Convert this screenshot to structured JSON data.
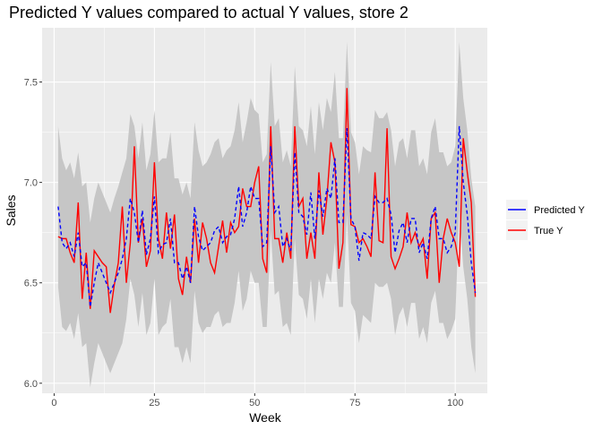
{
  "chart_data": {
    "type": "line",
    "title": "Predicted Y values compared to actual Y values, store 2",
    "xlabel": "Week",
    "ylabel": "Sales",
    "xlim": [
      -3,
      108
    ],
    "ylim": [
      5.95,
      7.77
    ],
    "x_ticks": [
      0,
      25,
      50,
      75,
      100
    ],
    "y_ticks": [
      6.0,
      6.5,
      7.0,
      7.5
    ],
    "x_tick_labels": [
      "0",
      "25",
      "50",
      "75",
      "100"
    ],
    "y_tick_labels": [
      "6.0",
      "6.5",
      "7.0",
      "7.5"
    ],
    "grid": true,
    "legend_position": "right",
    "colors": {
      "panel": "#ebebeb",
      "grid_major": "#ffffff",
      "ribbon": "#c6c6c6",
      "predicted": "#0000ff",
      "true": "#ff0000"
    },
    "x": [
      1,
      2,
      3,
      4,
      5,
      6,
      7,
      8,
      9,
      10,
      11,
      12,
      13,
      14,
      15,
      16,
      17,
      18,
      19,
      20,
      21,
      22,
      23,
      24,
      25,
      26,
      27,
      28,
      29,
      30,
      31,
      32,
      33,
      34,
      35,
      36,
      37,
      38,
      39,
      40,
      41,
      42,
      43,
      44,
      45,
      46,
      47,
      48,
      49,
      50,
      51,
      52,
      53,
      54,
      55,
      56,
      57,
      58,
      59,
      60,
      61,
      62,
      63,
      64,
      65,
      66,
      67,
      68,
      69,
      70,
      71,
      72,
      73,
      74,
      75,
      76,
      77,
      78,
      79,
      80,
      81,
      82,
      83,
      84,
      85,
      86,
      87,
      88,
      89,
      90,
      91,
      92,
      93,
      94,
      95,
      96,
      97,
      98,
      99,
      100,
      101,
      102,
      103,
      104,
      105
    ],
    "series": [
      {
        "name": "Predicted Y",
        "line": "dashed",
        "values": [
          6.88,
          6.7,
          6.67,
          6.7,
          6.63,
          6.75,
          6.58,
          6.6,
          6.38,
          6.5,
          6.6,
          6.55,
          6.5,
          6.45,
          6.5,
          6.55,
          6.62,
          6.72,
          6.92,
          6.85,
          6.7,
          6.86,
          6.64,
          6.72,
          6.93,
          6.65,
          6.69,
          6.7,
          6.82,
          6.6,
          6.6,
          6.52,
          6.58,
          6.5,
          6.88,
          6.73,
          6.66,
          6.68,
          6.7,
          6.76,
          6.78,
          6.7,
          6.73,
          6.74,
          6.82,
          6.98,
          6.78,
          6.85,
          6.98,
          6.92,
          6.92,
          6.68,
          6.7,
          7.18,
          6.85,
          6.88,
          6.68,
          6.72,
          6.66,
          7.15,
          6.85,
          6.83,
          6.74,
          6.95,
          6.72,
          6.96,
          6.83,
          6.97,
          6.92,
          7.12,
          6.8,
          6.8,
          7.27,
          6.82,
          6.78,
          6.61,
          6.75,
          6.74,
          6.72,
          6.93,
          6.9,
          6.9,
          6.92,
          6.84,
          6.65,
          6.76,
          6.8,
          6.7,
          6.82,
          6.82,
          6.65,
          6.7,
          6.62,
          6.82,
          6.88,
          6.72,
          6.72,
          6.65,
          6.68,
          6.75,
          7.28,
          7.0,
          6.84,
          6.6,
          6.45
        ]
      },
      {
        "name": "True Y",
        "line": "solid",
        "values": [
          6.73,
          6.72,
          6.72,
          6.65,
          6.6,
          6.9,
          6.42,
          6.65,
          6.37,
          6.66,
          6.63,
          6.6,
          6.58,
          6.35,
          6.49,
          6.6,
          6.88,
          6.5,
          6.7,
          7.18,
          6.7,
          6.82,
          6.58,
          6.66,
          7.1,
          6.72,
          6.62,
          6.85,
          6.67,
          6.84,
          6.52,
          6.44,
          6.63,
          6.5,
          6.82,
          6.6,
          6.8,
          6.72,
          6.6,
          6.55,
          6.68,
          6.81,
          6.65,
          6.8,
          6.75,
          6.78,
          6.97,
          6.88,
          6.88,
          7.0,
          7.08,
          6.62,
          6.55,
          7.28,
          6.72,
          6.72,
          6.6,
          6.75,
          6.62,
          7.28,
          6.88,
          6.92,
          6.62,
          6.75,
          6.62,
          7.05,
          6.74,
          6.92,
          7.2,
          7.1,
          6.57,
          6.7,
          7.47,
          6.79,
          6.78,
          6.7,
          6.72,
          6.68,
          6.63,
          7.05,
          6.71,
          6.7,
          7.27,
          6.63,
          6.57,
          6.62,
          6.68,
          6.85,
          6.7,
          6.75,
          6.68,
          6.72,
          6.52,
          6.82,
          6.85,
          6.5,
          6.72,
          6.82,
          6.75,
          6.7,
          6.58,
          7.22,
          7.05,
          6.9,
          6.43
        ]
      }
    ],
    "interval": {
      "upper": [
        7.28,
        7.12,
        7.06,
        7.1,
        7.02,
        7.15,
        6.98,
        7.0,
        6.8,
        6.92,
        7.0,
        6.95,
        6.9,
        6.85,
        6.92,
        6.98,
        7.05,
        7.12,
        7.34,
        7.28,
        7.12,
        7.3,
        7.06,
        7.14,
        7.36,
        7.1,
        7.12,
        7.12,
        7.25,
        7.02,
        7.02,
        6.94,
        7.0,
        6.92,
        7.3,
        7.16,
        7.08,
        7.1,
        7.14,
        7.2,
        7.22,
        7.12,
        7.16,
        7.18,
        7.26,
        7.4,
        7.2,
        7.3,
        7.42,
        7.36,
        7.34,
        7.1,
        7.14,
        7.6,
        7.28,
        7.32,
        7.1,
        7.16,
        7.08,
        7.58,
        7.28,
        7.26,
        7.18,
        7.38,
        7.14,
        7.4,
        7.26,
        7.42,
        7.35,
        7.55,
        7.22,
        7.22,
        7.7,
        7.25,
        7.2,
        7.04,
        7.18,
        7.16,
        7.15,
        7.36,
        7.32,
        7.32,
        7.35,
        7.26,
        7.08,
        7.2,
        7.22,
        7.12,
        7.26,
        7.26,
        7.08,
        7.12,
        7.04,
        7.25,
        7.32,
        7.15,
        7.15,
        7.08,
        7.1,
        7.18,
        7.7,
        7.42,
        7.26,
        7.02,
        6.88
      ],
      "lower": [
        6.48,
        6.28,
        6.26,
        6.3,
        6.22,
        6.35,
        6.18,
        6.2,
        5.98,
        6.1,
        6.2,
        6.15,
        6.1,
        6.05,
        6.1,
        6.15,
        6.2,
        6.32,
        6.52,
        6.44,
        6.28,
        6.45,
        6.24,
        6.3,
        6.52,
        6.24,
        6.28,
        6.3,
        6.42,
        6.18,
        6.18,
        6.1,
        6.18,
        6.1,
        6.46,
        6.3,
        6.25,
        6.28,
        6.28,
        6.34,
        6.36,
        6.28,
        6.3,
        6.3,
        6.4,
        6.56,
        6.36,
        6.42,
        6.56,
        6.5,
        6.5,
        6.28,
        6.28,
        6.76,
        6.44,
        6.46,
        6.28,
        6.3,
        6.24,
        6.72,
        6.44,
        6.42,
        6.32,
        6.52,
        6.3,
        6.52,
        6.42,
        6.55,
        6.5,
        6.7,
        6.38,
        6.38,
        6.84,
        6.4,
        6.36,
        6.2,
        6.34,
        6.32,
        6.3,
        6.5,
        6.48,
        6.48,
        6.5,
        6.42,
        6.24,
        6.34,
        6.38,
        6.28,
        6.4,
        6.4,
        6.22,
        6.28,
        6.2,
        6.4,
        6.46,
        6.3,
        6.3,
        6.22,
        6.26,
        6.32,
        6.86,
        6.58,
        6.42,
        6.18,
        6.05
      ]
    }
  }
}
